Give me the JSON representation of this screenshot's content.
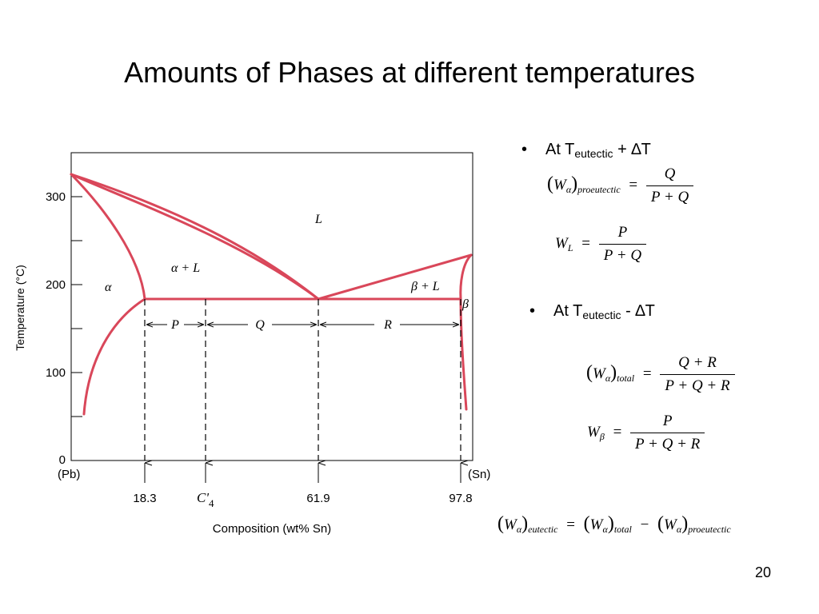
{
  "slide": {
    "title": "Amounts of Phases at different temperatures",
    "page_number": "20"
  },
  "diagram": {
    "y_axis_label": "Temperature (°C)",
    "x_axis_label": "Composition (wt% Sn)",
    "y_ticks": [
      "0",
      "100",
      "200",
      "300"
    ],
    "x_end_labels": {
      "left": "(Pb)",
      "right": "(Sn)"
    },
    "x_markers": [
      "18.3",
      "C'",
      "61.9",
      "97.8"
    ],
    "c_subscript": "4",
    "region_labels": {
      "liquid": "L",
      "alpha_liquid": "α + L",
      "alpha": "α",
      "beta_liquid": "β + L",
      "beta": "β"
    },
    "segment_labels": [
      "P",
      "Q",
      "R"
    ],
    "line_color": "#d9475a"
  },
  "bullets": [
    {
      "prefix": "At T",
      "sub": "eutectic",
      "suffix": " +  ∆T"
    },
    {
      "prefix": "At T",
      "sub": "eutectic",
      "suffix": " -  ∆T"
    }
  ],
  "equations": {
    "eq1": {
      "lhs": "W",
      "lhs_sub1": "α",
      "lhs_sub2": "proeutectic",
      "eq": "=",
      "num": "Q",
      "den": "P + Q"
    },
    "eq2": {
      "lhs": "W",
      "lhs_sub": "L",
      "eq": "=",
      "num": "P",
      "den": "P + Q"
    },
    "eq3": {
      "lhs": "W",
      "lhs_sub1": "α",
      "lhs_sub2": "total",
      "eq": "=",
      "num": "Q + R",
      "den": "P + Q + R"
    },
    "eq4": {
      "lhs": "W",
      "lhs_sub": "β",
      "eq": "=",
      "num": "P",
      "den": "P + Q + R"
    },
    "eq5": {
      "a": "W",
      "a_sub1": "α",
      "a_sub2": "eutectic",
      "eq": "=",
      "b": "W",
      "b_sub1": "α",
      "b_sub2": "total",
      "minus": "−",
      "c": "W",
      "c_sub1": "α",
      "c_sub2": "proeutectic"
    }
  }
}
